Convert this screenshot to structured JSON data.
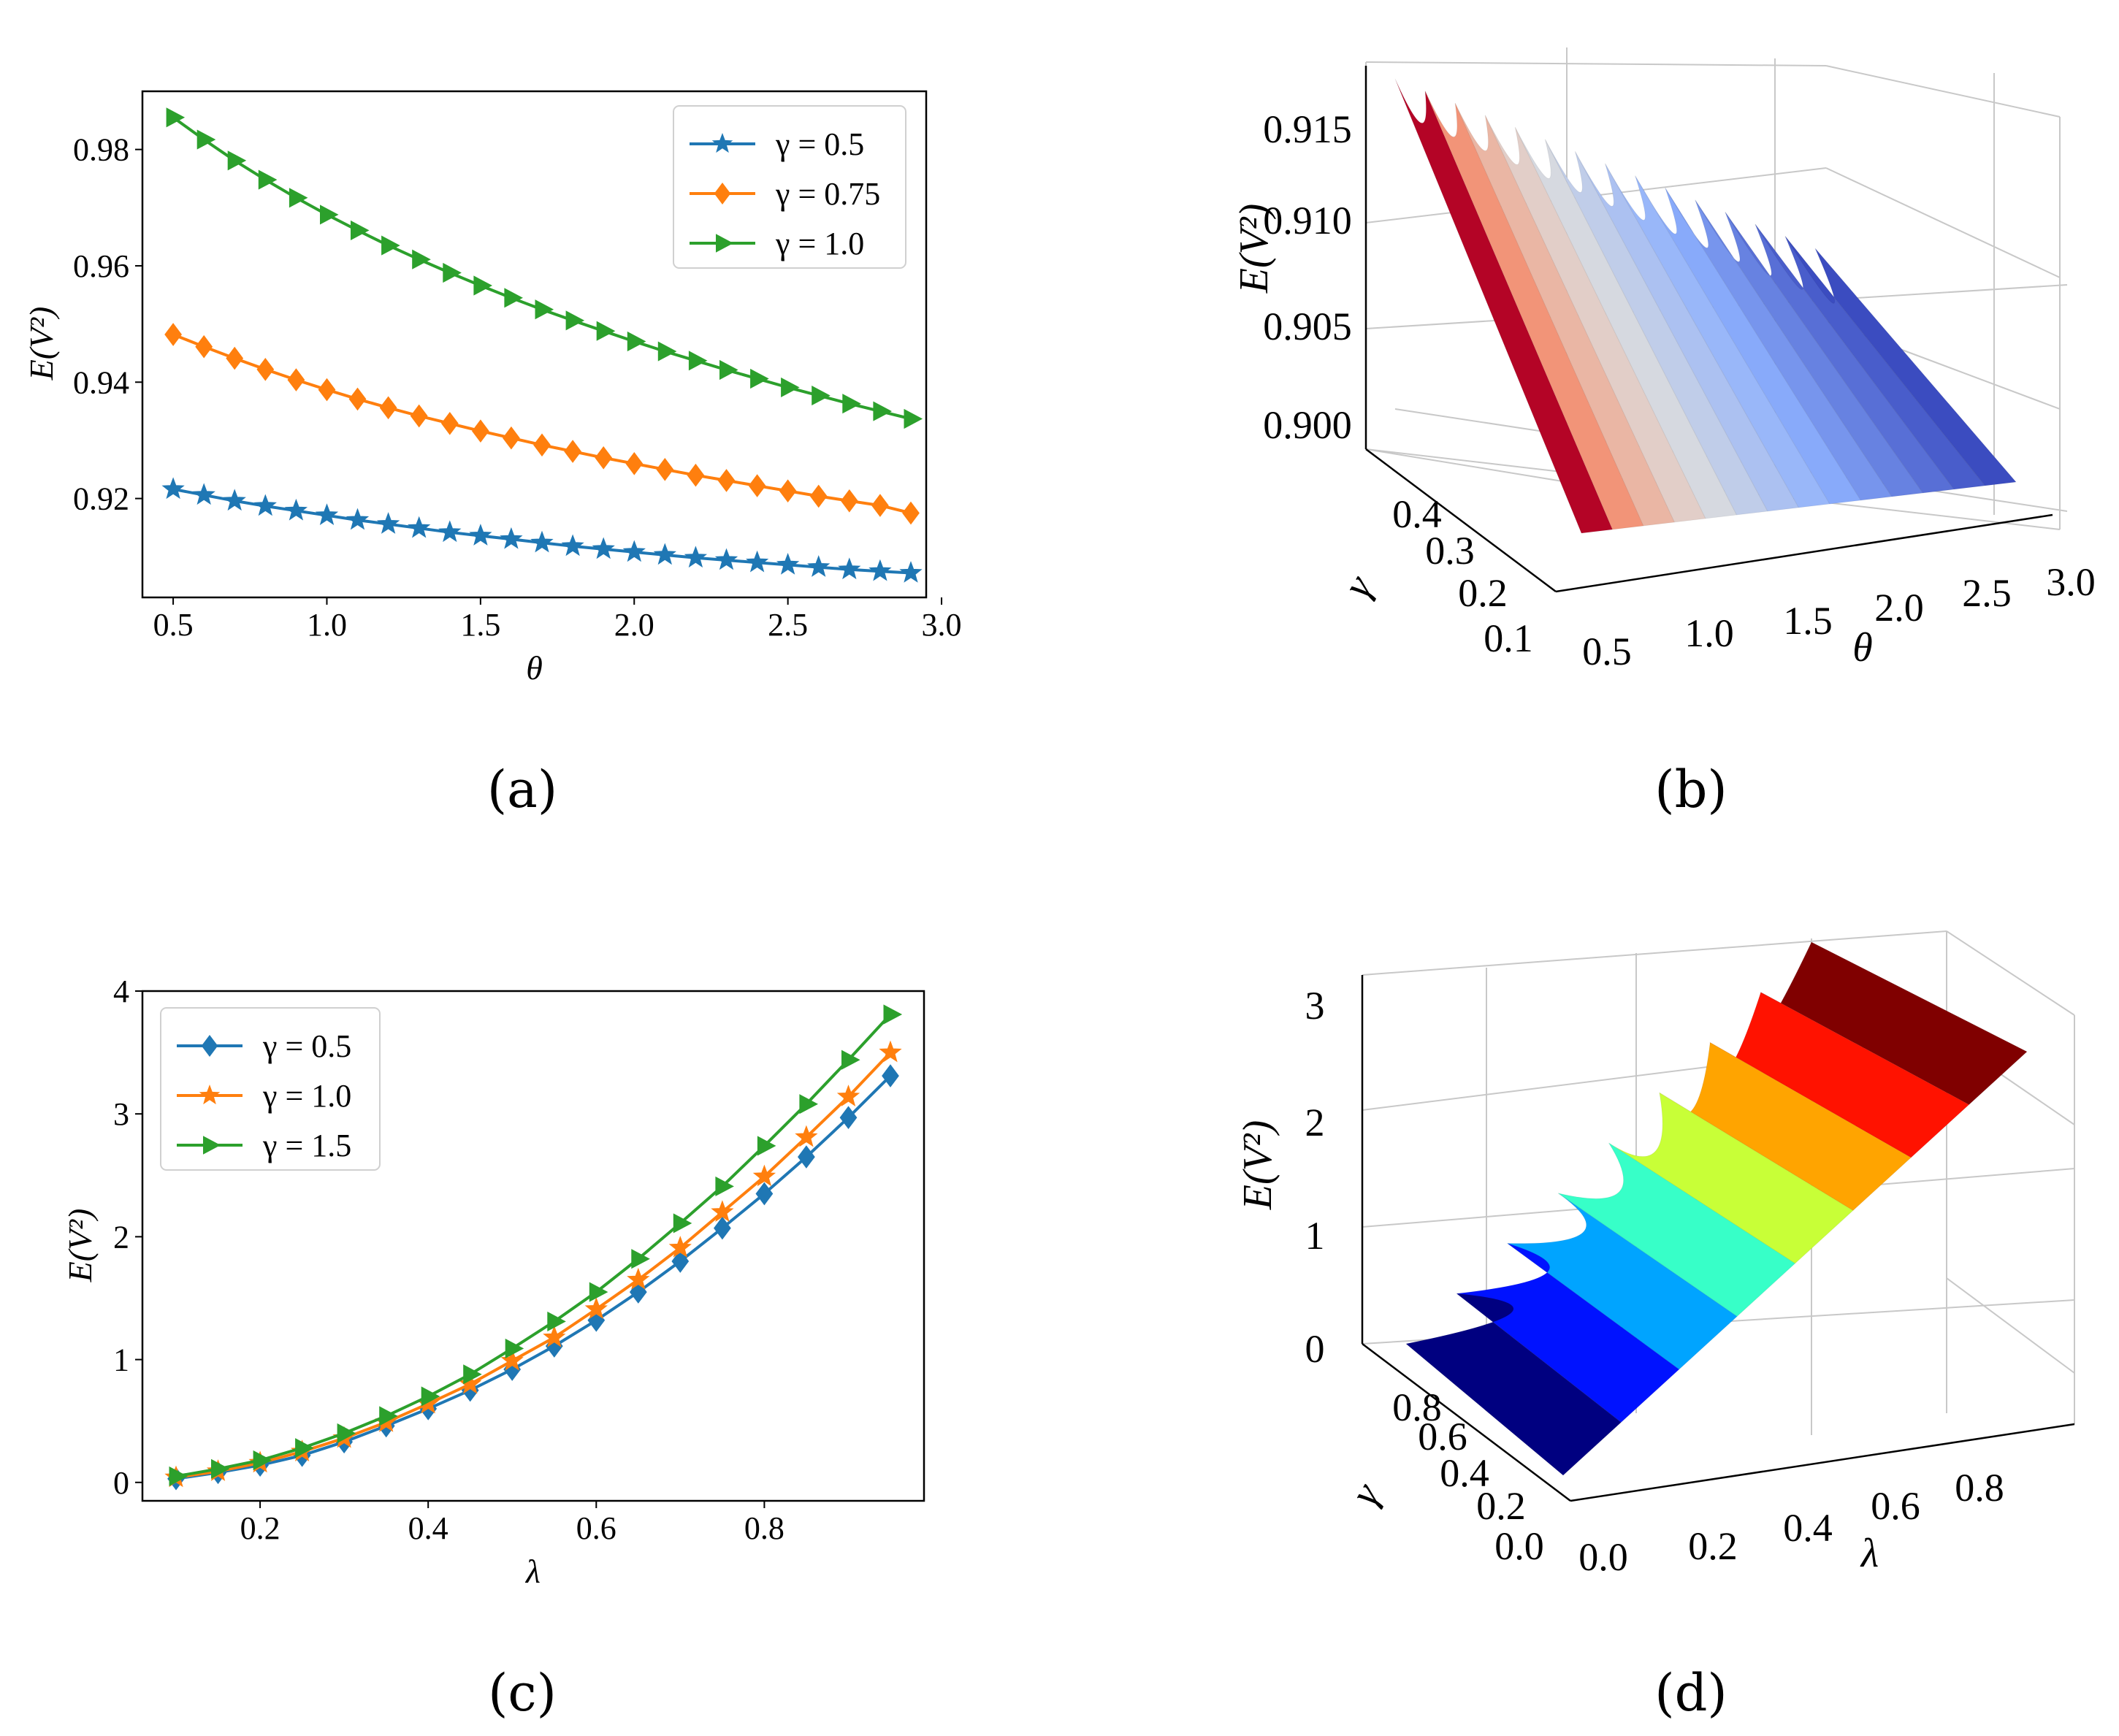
{
  "chart_data": [
    {
      "panel": "(a)",
      "type": "line",
      "xlabel": "θ",
      "ylabel": "E(V²)",
      "xlim": [
        0.4,
        2.95
      ],
      "ylim": [
        0.903,
        0.99
      ],
      "xticks": [
        "0.5",
        "1.0",
        "1.5",
        "2.0",
        "2.5",
        "3.0"
      ],
      "yticks": [
        "0.92",
        "0.94",
        "0.96",
        "0.98"
      ],
      "legend_position": "top-right",
      "x": [
        0.5,
        0.6,
        0.7,
        0.8,
        0.9,
        1.0,
        1.1,
        1.2,
        1.3,
        1.4,
        1.5,
        1.6,
        1.7,
        1.8,
        1.9,
        2.0,
        2.1,
        2.2,
        2.3,
        2.4,
        2.5,
        2.6,
        2.7,
        2.8,
        2.9
      ],
      "series": [
        {
          "name": "γ = 0.5",
          "color": "#1f77b4",
          "marker": "star",
          "values": [
            0.9216,
            0.9206,
            0.9196,
            0.9187,
            0.9179,
            0.9171,
            0.9163,
            0.9156,
            0.9149,
            0.9142,
            0.9136,
            0.913,
            0.9124,
            0.9118,
            0.9113,
            0.9108,
            0.9103,
            0.9098,
            0.9094,
            0.909,
            0.9086,
            0.9082,
            0.9078,
            0.9075,
            0.9072
          ]
        },
        {
          "name": "γ = 0.75",
          "color": "#ff7f0e",
          "marker": "diamond",
          "values": [
            0.9482,
            0.9461,
            0.9441,
            0.9422,
            0.9404,
            0.9387,
            0.9371,
            0.9356,
            0.9342,
            0.9329,
            0.9316,
            0.9304,
            0.9292,
            0.9281,
            0.927,
            0.926,
            0.925,
            0.924,
            0.9231,
            0.9222,
            0.9213,
            0.9204,
            0.9196,
            0.9188,
            0.9175
          ]
        },
        {
          "name": "γ = 1.0",
          "color": "#2ca02c",
          "marker": "triangle-right",
          "values": [
            0.9855,
            0.9817,
            0.9781,
            0.9748,
            0.9717,
            0.9688,
            0.9661,
            0.9635,
            0.9611,
            0.9588,
            0.9566,
            0.9545,
            0.9525,
            0.9506,
            0.9488,
            0.947,
            0.9453,
            0.9437,
            0.9421,
            0.9406,
            0.9391,
            0.9377,
            0.9363,
            0.935,
            0.9337
          ]
        }
      ]
    },
    {
      "panel": "(b)",
      "type": "surface",
      "xlabel": "θ",
      "ylabel": "γ",
      "zlabel": "E(V²)",
      "xticks": [
        "0.5",
        "1.0",
        "1.5",
        "2.0",
        "2.5",
        "3.0"
      ],
      "yticks": [
        "0.1",
        "0.2",
        "0.3",
        "0.4"
      ],
      "zticks": [
        "0.900",
        "0.905",
        "0.910",
        "0.915"
      ],
      "colormap": "coolwarm",
      "z_range": [
        0.898,
        0.917
      ]
    },
    {
      "panel": "(c)",
      "type": "line",
      "xlabel": "λ",
      "ylabel": "E(V²)",
      "xlim": [
        0.06,
        0.99
      ],
      "ylim": [
        -0.15,
        4.0
      ],
      "xticks": [
        "0.2",
        "0.4",
        "0.6",
        "0.8"
      ],
      "yticks": [
        "0",
        "1",
        "2",
        "3",
        "4"
      ],
      "legend_position": "top-left",
      "x": [
        0.1,
        0.15,
        0.2,
        0.25,
        0.3,
        0.35,
        0.4,
        0.45,
        0.5,
        0.55,
        0.6,
        0.65,
        0.7,
        0.75,
        0.8,
        0.85,
        0.9,
        0.95
      ],
      "series": [
        {
          "name": "γ = 0.5",
          "color": "#1f77b4",
          "marker": "diamond",
          "values": [
            0.03,
            0.08,
            0.14,
            0.22,
            0.33,
            0.46,
            0.6,
            0.75,
            0.92,
            1.11,
            1.32,
            1.55,
            1.8,
            2.07,
            2.35,
            2.65,
            2.97,
            3.31
          ]
        },
        {
          "name": "γ = 1.0",
          "color": "#ff7f0e",
          "marker": "star",
          "values": [
            0.04,
            0.09,
            0.16,
            0.25,
            0.36,
            0.49,
            0.64,
            0.8,
            0.99,
            1.18,
            1.41,
            1.65,
            1.91,
            2.2,
            2.49,
            2.81,
            3.14,
            3.5
          ]
        },
        {
          "name": "γ = 1.5",
          "color": "#2ca02c",
          "marker": "triangle-right",
          "values": [
            0.05,
            0.11,
            0.18,
            0.28,
            0.4,
            0.54,
            0.7,
            0.88,
            1.09,
            1.31,
            1.55,
            1.82,
            2.11,
            2.41,
            2.74,
            3.08,
            3.44,
            3.81
          ]
        }
      ]
    },
    {
      "panel": "(d)",
      "type": "surface",
      "xlabel": "λ",
      "ylabel": "γ",
      "zlabel": "E(V²)",
      "xticks": [
        "0.0",
        "0.2",
        "0.4",
        "0.6",
        "0.8"
      ],
      "yticks": [
        "0.0",
        "0.2",
        "0.4",
        "0.6",
        "0.8"
      ],
      "zticks": [
        "0",
        "1",
        "2",
        "3"
      ],
      "colormap": "jet",
      "z_range": [
        0.0,
        3.4
      ]
    }
  ],
  "panel_labels": [
    "(a)",
    "(b)",
    "(c)",
    "(d)"
  ]
}
